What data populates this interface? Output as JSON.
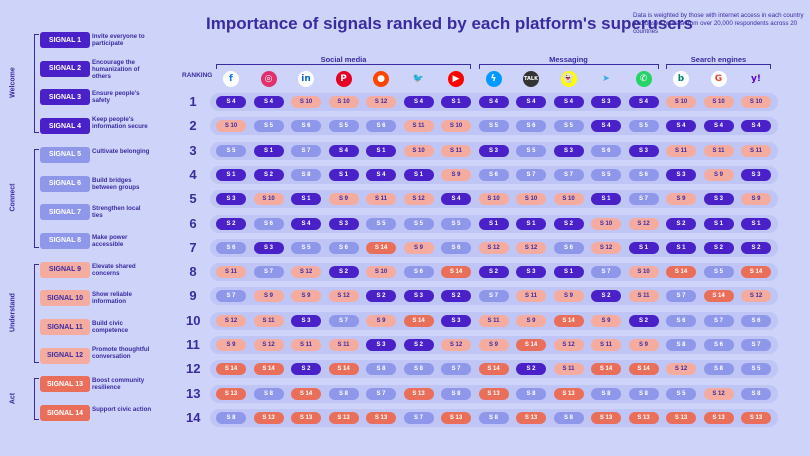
{
  "title": "Importance of signals ranked by each platform's superusers",
  "note": "Data is weighted by those with internet access in each country and based on data from over 20,000 respondents across 20 countries",
  "ranking_label": "RANKING",
  "groups": [
    {
      "name": "Welcome",
      "from": 0,
      "to": 3
    },
    {
      "name": "Connect",
      "from": 4,
      "to": 7
    },
    {
      "name": "Understand",
      "from": 8,
      "to": 11
    },
    {
      "name": "Act",
      "from": 12,
      "to": 13
    }
  ],
  "signals": [
    {
      "label": "SIGNAL 1",
      "desc": "Invite everyone to participate"
    },
    {
      "label": "SIGNAL 2",
      "desc": "Encourage the humanization of others"
    },
    {
      "label": "SIGNAL 3",
      "desc": "Ensure people's safety"
    },
    {
      "label": "SIGNAL 4",
      "desc": "Keep people's information secure"
    },
    {
      "label": "SIGNAL 5",
      "desc": "Cultivate belonging"
    },
    {
      "label": "SIGNAL 6",
      "desc": "Build bridges between groups"
    },
    {
      "label": "SIGNAL 7",
      "desc": "Strengthen local ties"
    },
    {
      "label": "SIGNAL 8",
      "desc": "Make power accessible"
    },
    {
      "label": "SIGNAL 9",
      "desc": "Elevate shared concerns"
    },
    {
      "label": "SIGNAL 10",
      "desc": "Show reliable information"
    },
    {
      "label": "SIGNAL 11",
      "desc": "Build civic competence"
    },
    {
      "label": "SIGNAL 12",
      "desc": "Promote thoughtful conversation"
    },
    {
      "label": "SIGNAL 13",
      "desc": "Boost community resilience"
    },
    {
      "label": "SIGNAL 14",
      "desc": "Support civic action"
    }
  ],
  "signal_colors": [
    "#4a21c9",
    "#4a21c9",
    "#4a21c9",
    "#4a21c9",
    "#8f97ea",
    "#8f97ea",
    "#8f97ea",
    "#8f97ea",
    "#f5aca0",
    "#f5aca0",
    "#f5aca0",
    "#f5aca0",
    "#ea6f5a",
    "#ea6f5a"
  ],
  "signal_text_colors": [
    "#ffffff",
    "#ffffff",
    "#ffffff",
    "#ffffff",
    "#ffffff",
    "#ffffff",
    "#ffffff",
    "#ffffff",
    "#3b2ba0",
    "#3b2ba0",
    "#3b2ba0",
    "#3b2ba0",
    "#ffffff",
    "#ffffff"
  ],
  "categories": [
    {
      "name": "Social media",
      "from": 0,
      "to": 6
    },
    {
      "name": "Messaging",
      "from": 7,
      "to": 11
    },
    {
      "name": "Search engines",
      "from": 12,
      "to": 14
    }
  ],
  "platforms": [
    {
      "icon": "facebook-icon",
      "glyph": "f",
      "bg": "#ffffff",
      "fg": "#1877f2"
    },
    {
      "icon": "instagram-icon",
      "glyph": "◎",
      "bg": "#e1306c",
      "fg": "#ffffff"
    },
    {
      "icon": "linkedin-icon",
      "glyph": "in",
      "bg": "#ffffff",
      "fg": "#0a66c2"
    },
    {
      "icon": "pinterest-icon",
      "glyph": "P",
      "bg": "#e60023",
      "fg": "#ffffff"
    },
    {
      "icon": "reddit-icon",
      "glyph": "●",
      "bg": "#ff4500",
      "fg": "#ffffff"
    },
    {
      "icon": "twitter-icon",
      "glyph": "🐦",
      "bg": "#cdd3f9",
      "fg": "#1da1f2"
    },
    {
      "icon": "youtube-icon",
      "glyph": "▶",
      "bg": "#ff0000",
      "fg": "#ffffff"
    },
    {
      "icon": "messenger-icon",
      "glyph": "ϟ",
      "bg": "#0099ff",
      "fg": "#ffffff"
    },
    {
      "icon": "talk-icon",
      "glyph": "TALK",
      "bg": "#333333",
      "fg": "#ffffff"
    },
    {
      "icon": "snapchat-icon",
      "glyph": "👻",
      "bg": "#fffc00",
      "fg": "#333333"
    },
    {
      "icon": "telegram-icon",
      "glyph": "➤",
      "bg": "#cdd3f9",
      "fg": "#2aabee"
    },
    {
      "icon": "whatsapp-icon",
      "glyph": "✆",
      "bg": "#25d366",
      "fg": "#ffffff"
    },
    {
      "icon": "bing-icon",
      "glyph": "b",
      "bg": "#ffffff",
      "fg": "#008373"
    },
    {
      "icon": "google-icon",
      "glyph": "G",
      "bg": "#ffffff",
      "fg": "#ea4335"
    },
    {
      "icon": "yahoo-icon",
      "glyph": "y!",
      "bg": "#cdd3f9",
      "fg": "#6001d2"
    }
  ],
  "chart_data": {
    "type": "table",
    "ranks": [
      "1",
      "2",
      "3",
      "4",
      "5",
      "6",
      "7",
      "8",
      "9",
      "10",
      "11",
      "12",
      "13",
      "14"
    ],
    "grid": [
      [
        4,
        4,
        10,
        10,
        12,
        4,
        1,
        4,
        4,
        4,
        3,
        4,
        10,
        10,
        10
      ],
      [
        10,
        5,
        6,
        5,
        6,
        11,
        10,
        5,
        6,
        5,
        4,
        5,
        4,
        4,
        4
      ],
      [
        5,
        1,
        7,
        4,
        1,
        10,
        11,
        3,
        5,
        3,
        6,
        3,
        11,
        11,
        11
      ],
      [
        1,
        2,
        8,
        1,
        4,
        1,
        9,
        6,
        7,
        7,
        5,
        6,
        3,
        9,
        3
      ],
      [
        3,
        10,
        1,
        9,
        11,
        12,
        4,
        10,
        10,
        10,
        1,
        7,
        9,
        3,
        9
      ],
      [
        2,
        6,
        4,
        3,
        5,
        5,
        5,
        1,
        1,
        2,
        10,
        12,
        2,
        1,
        1
      ],
      [
        6,
        3,
        5,
        6,
        14,
        9,
        6,
        12,
        12,
        6,
        12,
        1,
        1,
        2,
        2
      ],
      [
        11,
        7,
        12,
        2,
        10,
        6,
        14,
        2,
        3,
        1,
        7,
        10,
        14,
        5,
        14
      ],
      [
        7,
        9,
        9,
        12,
        2,
        3,
        2,
        7,
        11,
        9,
        2,
        11,
        7,
        14,
        12
      ],
      [
        12,
        11,
        3,
        7,
        9,
        14,
        3,
        11,
        9,
        14,
        9,
        2,
        6,
        7,
        6
      ],
      [
        9,
        12,
        11,
        11,
        3,
        2,
        12,
        9,
        14,
        12,
        11,
        9,
        8,
        6,
        7
      ],
      [
        14,
        14,
        2,
        14,
        8,
        8,
        7,
        14,
        2,
        11,
        14,
        14,
        12,
        8,
        5
      ],
      [
        13,
        8,
        14,
        8,
        7,
        13,
        8,
        13,
        8,
        13,
        8,
        8,
        5,
        12,
        8
      ],
      [
        8,
        13,
        13,
        13,
        13,
        7,
        13,
        8,
        13,
        8,
        13,
        13,
        13,
        13,
        13
      ]
    ],
    "cell_prefix": "S"
  }
}
